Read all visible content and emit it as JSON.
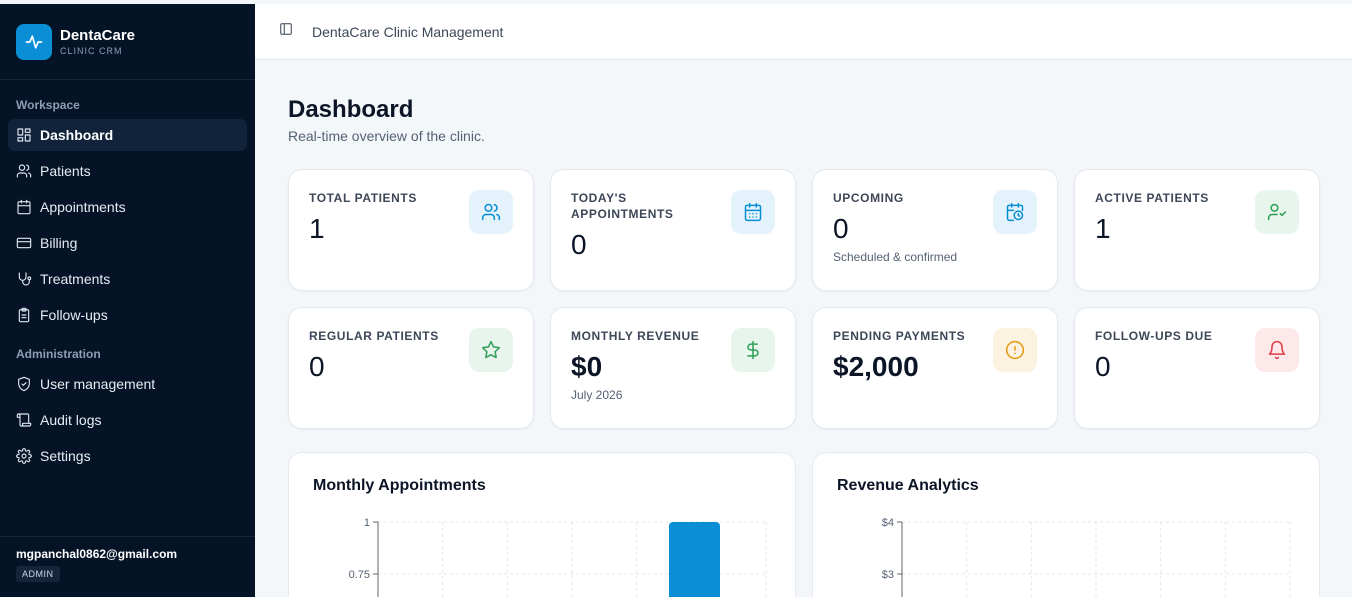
{
  "brand": {
    "name": "DentaCare",
    "sub": "CLINIC CRM"
  },
  "sidebar": {
    "workspace_title": "Workspace",
    "workspace_items": [
      {
        "label": "Dashboard",
        "icon": "dashboard-icon",
        "active": true
      },
      {
        "label": "Patients",
        "icon": "users-icon"
      },
      {
        "label": "Appointments",
        "icon": "calendar-icon"
      },
      {
        "label": "Billing",
        "icon": "credit-card-icon"
      },
      {
        "label": "Treatments",
        "icon": "stethoscope-icon"
      },
      {
        "label": "Follow-ups",
        "icon": "clipboard-icon"
      }
    ],
    "admin_title": "Administration",
    "admin_items": [
      {
        "label": "User management",
        "icon": "shield-icon"
      },
      {
        "label": "Audit logs",
        "icon": "scroll-icon"
      },
      {
        "label": "Settings",
        "icon": "gear-icon"
      }
    ],
    "user_email": "mgpanchal0862@gmail.com",
    "user_role": "ADMIN"
  },
  "topbar": {
    "title": "DentaCare Clinic Management"
  },
  "page": {
    "title": "Dashboard",
    "subtitle": "Real-time overview of the clinic."
  },
  "stats": [
    {
      "label": "Total Patients",
      "value": "1",
      "icon": "users-icon",
      "color": "#0a8fd6"
    },
    {
      "label": "Today's Appointments",
      "value": "0",
      "icon": "calendar-icon",
      "color": "#0a8fd6"
    },
    {
      "label": "Upcoming",
      "value": "0",
      "note": "Scheduled & confirmed",
      "icon": "calendar-clock-icon",
      "color": "#0a8fd6"
    },
    {
      "label": "Active Patients",
      "value": "1",
      "icon": "user-check-icon",
      "color": "#2e9e57"
    },
    {
      "label": "Regular Patients",
      "value": "0",
      "icon": "star-icon",
      "color": "#2e9e57"
    },
    {
      "label": "Monthly Revenue",
      "value": "$0",
      "note": "July 2026",
      "icon": "dollar-icon",
      "color": "#2e9e57"
    },
    {
      "label": "Pending Payments",
      "value": "$2,000",
      "icon": "alert-circle-icon",
      "color": "#e29a12"
    },
    {
      "label": "Follow-ups Due",
      "value": "0",
      "icon": "bell-icon",
      "color": "#e03a45"
    }
  ],
  "panels": {
    "appointments_title": "Monthly Appointments",
    "revenue_title": "Revenue Analytics"
  },
  "chart_data": [
    {
      "type": "bar",
      "title": "Monthly Appointments",
      "y_ticks": [
        "1",
        "0.75"
      ],
      "ylim": [
        0,
        1
      ],
      "values_visible": [
        0,
        0,
        0,
        0,
        1,
        0
      ],
      "bar_color": "#0a8fd6",
      "grid": true
    },
    {
      "type": "line",
      "title": "Revenue Analytics",
      "y_ticks": [
        "$4",
        "$3"
      ],
      "grid": true
    }
  ]
}
